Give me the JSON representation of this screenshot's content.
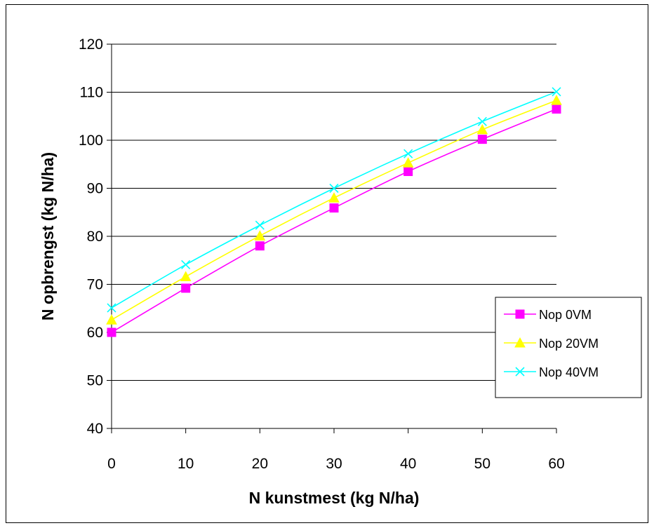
{
  "chart_data": {
    "type": "line",
    "title": "",
    "xlabel": "N kunstmest (kg N/ha)",
    "ylabel": "N opbrengst (kg N/ha)",
    "x": [
      0,
      10,
      20,
      30,
      40,
      50,
      60
    ],
    "xlim": [
      0,
      60
    ],
    "ylim": [
      40,
      120
    ],
    "xticks": [
      0,
      10,
      20,
      30,
      40,
      50,
      60
    ],
    "yticks": [
      40,
      50,
      60,
      70,
      80,
      90,
      100,
      110,
      120
    ],
    "grid": "horizontal",
    "legend_position": "right",
    "series": [
      {
        "name": "Nop 0VM",
        "values": [
          60,
          69.2,
          78,
          85.9,
          93.5,
          100.2,
          106.5
        ],
        "color": "#FF00FF",
        "marker": "square"
      },
      {
        "name": "Nop 20VM",
        "values": [
          62.6,
          71.6,
          80.1,
          88,
          95.3,
          102.2,
          108.3
        ],
        "color": "#FFFF00",
        "marker": "triangle"
      },
      {
        "name": "Nop 40VM",
        "values": [
          65.1,
          74.1,
          82.3,
          90,
          97.2,
          103.9,
          110.1
        ],
        "color": "#00FFFF",
        "marker": "x"
      }
    ]
  }
}
